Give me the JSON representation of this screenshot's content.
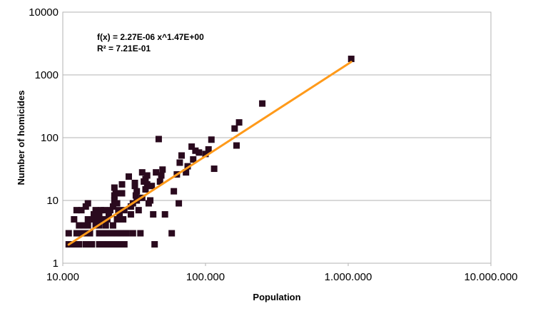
{
  "chart_data": {
    "type": "scatter",
    "title": "",
    "xlabel": "Population",
    "ylabel": "Number of homicides",
    "x_scale": "log",
    "y_scale": "log",
    "xlim": [
      10000,
      10000000
    ],
    "ylim": [
      1,
      10000
    ],
    "x_ticks": [
      "10.000",
      "100.000",
      "1.000.000",
      "10.000.000"
    ],
    "y_ticks": [
      "1",
      "10",
      "100",
      "1000",
      "10000"
    ],
    "grid": true,
    "legend": "none",
    "marker_color": "#2a0a1e",
    "trendline_color": "#ff9a1a",
    "trendline": {
      "type": "power",
      "a": 2.27e-06,
      "b": 1.47,
      "equation": "f(x) = 2.27E-06 x^1.47E+00",
      "r2": "R² = 7.21E-01"
    },
    "series": [
      {
        "points": [
          [
            11000,
            2
          ],
          [
            11000,
            3
          ],
          [
            11500,
            2
          ],
          [
            12000,
            5
          ],
          [
            12500,
            2
          ],
          [
            12500,
            3
          ],
          [
            12500,
            7
          ],
          [
            13000,
            2
          ],
          [
            13000,
            3
          ],
          [
            13000,
            4
          ],
          [
            13500,
            7
          ],
          [
            14000,
            4
          ],
          [
            14000,
            3
          ],
          [
            14500,
            2
          ],
          [
            14500,
            8
          ],
          [
            15000,
            9
          ],
          [
            15000,
            5
          ],
          [
            15000,
            4
          ],
          [
            15500,
            3
          ],
          [
            16000,
            2
          ],
          [
            16000,
            5
          ],
          [
            16500,
            6
          ],
          [
            17000,
            4
          ],
          [
            17000,
            7
          ],
          [
            17500,
            5
          ],
          [
            18000,
            2
          ],
          [
            18000,
            3
          ],
          [
            18000,
            4
          ],
          [
            18000,
            6
          ],
          [
            18500,
            7
          ],
          [
            19000,
            2
          ],
          [
            19000,
            3
          ],
          [
            19000,
            5
          ],
          [
            19500,
            7
          ],
          [
            20000,
            2
          ],
          [
            20000,
            3
          ],
          [
            20000,
            4
          ],
          [
            20500,
            5
          ],
          [
            21000,
            2
          ],
          [
            21000,
            6
          ],
          [
            21500,
            7
          ],
          [
            22000,
            2
          ],
          [
            22000,
            3
          ],
          [
            22500,
            4
          ],
          [
            22500,
            8
          ],
          [
            23000,
            16
          ],
          [
            23000,
            12
          ],
          [
            23000,
            10
          ],
          [
            23500,
            13
          ],
          [
            23500,
            2
          ],
          [
            24000,
            3
          ],
          [
            24000,
            5
          ],
          [
            24000,
            9
          ],
          [
            24500,
            7
          ],
          [
            25000,
            2
          ],
          [
            25000,
            6
          ],
          [
            25500,
            3
          ],
          [
            26000,
            18
          ],
          [
            26000,
            13
          ],
          [
            26500,
            5
          ],
          [
            27000,
            2
          ],
          [
            27000,
            7
          ],
          [
            28000,
            3
          ],
          [
            29000,
            24
          ],
          [
            30000,
            8
          ],
          [
            30000,
            6
          ],
          [
            31000,
            9
          ],
          [
            31000,
            3
          ],
          [
            32000,
            19
          ],
          [
            32000,
            17
          ],
          [
            32500,
            12
          ],
          [
            33000,
            14
          ],
          [
            33000,
            10
          ],
          [
            34000,
            7
          ],
          [
            35000,
            3
          ],
          [
            36000,
            28
          ],
          [
            36000,
            11
          ],
          [
            37000,
            20
          ],
          [
            38000,
            22
          ],
          [
            38000,
            15
          ],
          [
            39000,
            18
          ],
          [
            39000,
            25
          ],
          [
            40000,
            9
          ],
          [
            41000,
            10
          ],
          [
            42000,
            17
          ],
          [
            43000,
            6
          ],
          [
            44000,
            2
          ],
          [
            45000,
            28
          ],
          [
            47000,
            95
          ],
          [
            48000,
            20
          ],
          [
            49000,
            25
          ],
          [
            50000,
            31
          ],
          [
            52000,
            6
          ],
          [
            58000,
            3
          ],
          [
            60000,
            14
          ],
          [
            63000,
            26
          ],
          [
            65000,
            9
          ],
          [
            66000,
            40
          ],
          [
            68000,
            52
          ],
          [
            73000,
            28
          ],
          [
            75000,
            35
          ],
          [
            80000,
            72
          ],
          [
            82000,
            45
          ],
          [
            85000,
            62
          ],
          [
            90000,
            58
          ],
          [
            100000,
            55
          ],
          [
            105000,
            65
          ],
          [
            110000,
            93
          ],
          [
            115000,
            32
          ],
          [
            160000,
            140
          ],
          [
            165000,
            75
          ],
          [
            172000,
            175
          ],
          [
            250000,
            350
          ],
          [
            1050000,
            1800
          ]
        ]
      }
    ]
  }
}
